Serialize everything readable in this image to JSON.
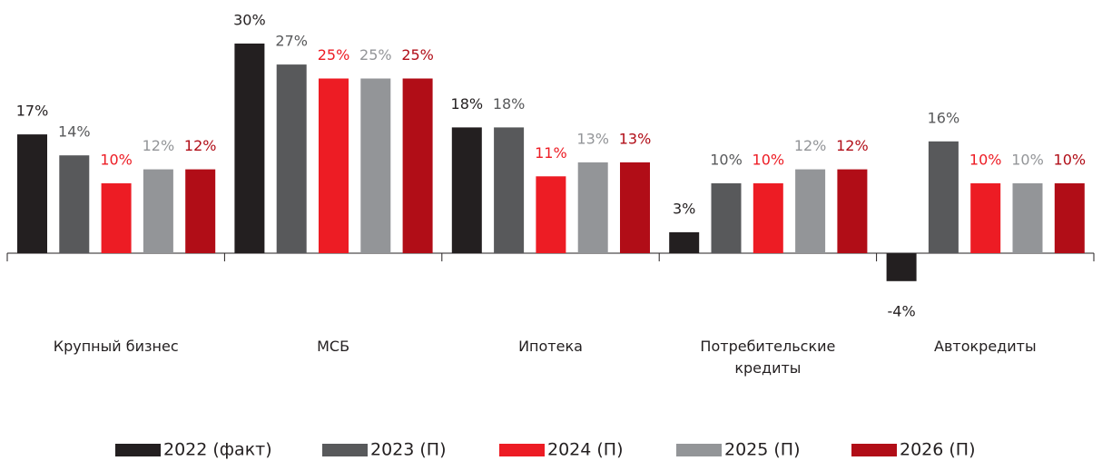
{
  "chart_data": {
    "type": "bar",
    "categories": [
      "Крупный бизнес",
      "МСБ",
      "Ипотека",
      "Потребительские кредиты",
      "Автокредиты"
    ],
    "series": [
      {
        "name": "2022 (факт)",
        "color": "#231f20",
        "label_color": "#231f20",
        "values": [
          17,
          30,
          18,
          3,
          -4
        ],
        "value_labels": [
          "17%",
          "30%",
          "18%",
          "3%",
          "-4%"
        ]
      },
      {
        "name": "2023 (П)",
        "color": "#58595b",
        "label_color": "#58595b",
        "values": [
          14,
          27,
          18,
          10,
          16
        ],
        "value_labels": [
          "14%",
          "27%",
          "18%",
          "10%",
          "16%"
        ]
      },
      {
        "name": "2024 (П)",
        "color": "#ed1c24",
        "label_color": "#ed1c24",
        "values": [
          10,
          25,
          11,
          10,
          10
        ],
        "value_labels": [
          "10%",
          "25%",
          "11%",
          "10%",
          "10%"
        ]
      },
      {
        "name": "2025 (П)",
        "color": "#939598",
        "label_color": "#939598",
        "values": [
          12,
          25,
          13,
          12,
          10
        ],
        "value_labels": [
          "12%",
          "25%",
          "13%",
          "12%",
          "10%"
        ]
      },
      {
        "name": "2026 (П)",
        "color": "#b10d17",
        "label_color": "#b10d17",
        "values": [
          12,
          25,
          13,
          12,
          10
        ],
        "value_labels": [
          "12%",
          "25%",
          "13%",
          "12%",
          "10%"
        ]
      }
    ],
    "legend": "bottom"
  }
}
